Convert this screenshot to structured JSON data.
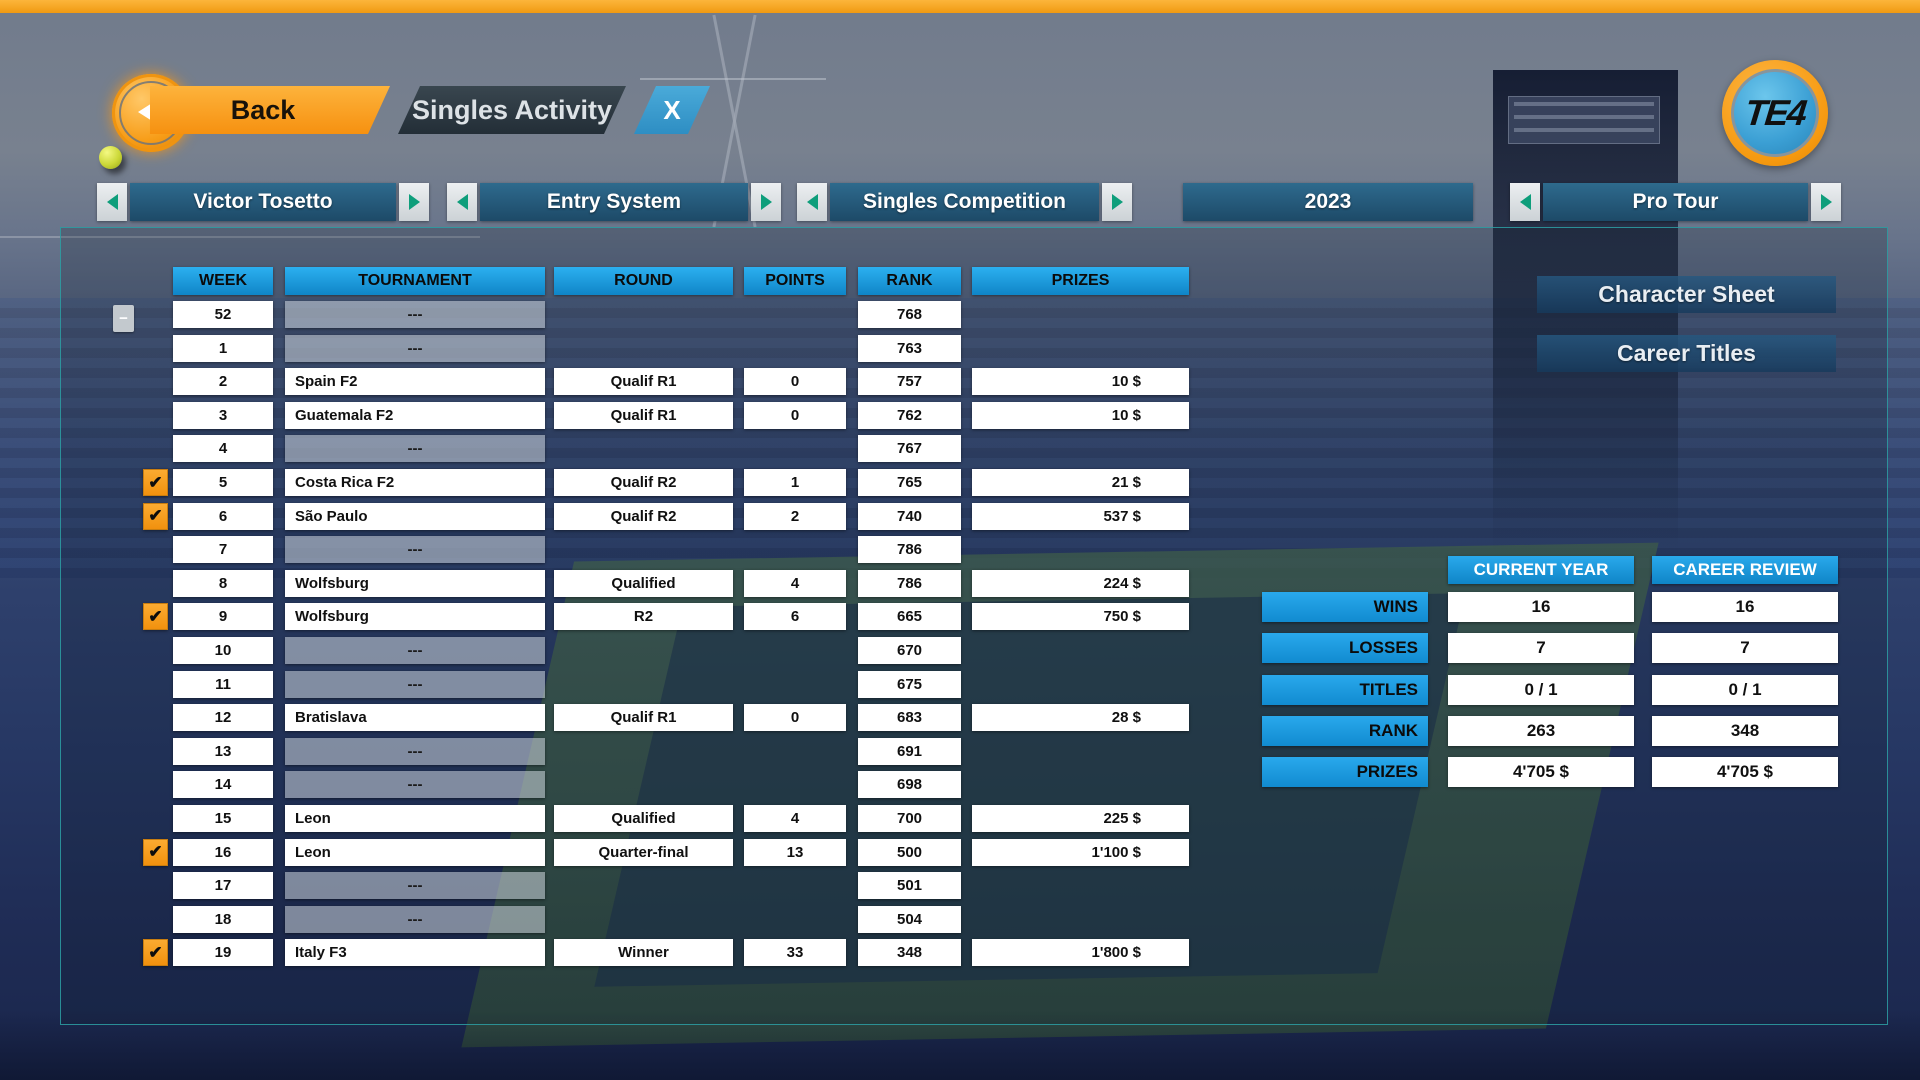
{
  "title_bar": {
    "back_label": "Back",
    "screen_title": "Singles Activity",
    "close_label": "X",
    "logo_text": "TE4"
  },
  "icons": {
    "check": "✔",
    "collapse_minus": "−"
  },
  "nav": {
    "selectors": [
      {
        "label": "Victor Tosetto"
      },
      {
        "label": "Entry System"
      },
      {
        "label": "Singles Competition"
      },
      {
        "label": "2023"
      },
      {
        "label": "Pro Tour"
      }
    ]
  },
  "table": {
    "headers": [
      "WEEK",
      "TOURNAMENT",
      "ROUND",
      "POINTS",
      "RANK",
      "PRIZES"
    ],
    "rows": [
      {
        "week": "52",
        "tournament": "---",
        "round": "",
        "points": "",
        "rank": "768",
        "prizes": "",
        "checked": false,
        "empty": true,
        "collapse": true
      },
      {
        "week": "1",
        "tournament": "---",
        "round": "",
        "points": "",
        "rank": "763",
        "prizes": "",
        "checked": false,
        "empty": true,
        "collapse": false
      },
      {
        "week": "2",
        "tournament": "Spain F2",
        "round": "Qualif R1",
        "points": "0",
        "rank": "757",
        "prizes": "10 $",
        "checked": false,
        "empty": false,
        "collapse": false
      },
      {
        "week": "3",
        "tournament": "Guatemala F2",
        "round": "Qualif R1",
        "points": "0",
        "rank": "762",
        "prizes": "10 $",
        "checked": false,
        "empty": false,
        "collapse": false
      },
      {
        "week": "4",
        "tournament": "---",
        "round": "",
        "points": "",
        "rank": "767",
        "prizes": "",
        "checked": false,
        "empty": true,
        "collapse": false
      },
      {
        "week": "5",
        "tournament": "Costa Rica F2",
        "round": "Qualif R2",
        "points": "1",
        "rank": "765",
        "prizes": "21 $",
        "checked": true,
        "empty": false,
        "collapse": false
      },
      {
        "week": "6",
        "tournament": "São Paulo",
        "round": "Qualif R2",
        "points": "2",
        "rank": "740",
        "prizes": "537 $",
        "checked": true,
        "empty": false,
        "collapse": false
      },
      {
        "week": "7",
        "tournament": "---",
        "round": "",
        "points": "",
        "rank": "786",
        "prizes": "",
        "checked": false,
        "empty": true,
        "collapse": false
      },
      {
        "week": "8",
        "tournament": "Wolfsburg",
        "round": "Qualified",
        "points": "4",
        "rank": "786",
        "prizes": "224 $",
        "checked": false,
        "empty": false,
        "collapse": false
      },
      {
        "week": "9",
        "tournament": "Wolfsburg",
        "round": "R2",
        "points": "6",
        "rank": "665",
        "prizes": "750 $",
        "checked": true,
        "empty": false,
        "collapse": false
      },
      {
        "week": "10",
        "tournament": "---",
        "round": "",
        "points": "",
        "rank": "670",
        "prizes": "",
        "checked": false,
        "empty": true,
        "collapse": false
      },
      {
        "week": "11",
        "tournament": "---",
        "round": "",
        "points": "",
        "rank": "675",
        "prizes": "",
        "checked": false,
        "empty": true,
        "collapse": false
      },
      {
        "week": "12",
        "tournament": "Bratislava",
        "round": "Qualif R1",
        "points": "0",
        "rank": "683",
        "prizes": "28 $",
        "checked": false,
        "empty": false,
        "collapse": false
      },
      {
        "week": "13",
        "tournament": "---",
        "round": "",
        "points": "",
        "rank": "691",
        "prizes": "",
        "checked": false,
        "empty": true,
        "collapse": false
      },
      {
        "week": "14",
        "tournament": "---",
        "round": "",
        "points": "",
        "rank": "698",
        "prizes": "",
        "checked": false,
        "empty": true,
        "collapse": false
      },
      {
        "week": "15",
        "tournament": "Leon",
        "round": "Qualified",
        "points": "4",
        "rank": "700",
        "prizes": "225 $",
        "checked": false,
        "empty": false,
        "collapse": false
      },
      {
        "week": "16",
        "tournament": "Leon",
        "round": "Quarter-final",
        "points": "13",
        "rank": "500",
        "prizes": "1'100 $",
        "checked": true,
        "empty": false,
        "collapse": false
      },
      {
        "week": "17",
        "tournament": "---",
        "round": "",
        "points": "",
        "rank": "501",
        "prizes": "",
        "checked": false,
        "empty": true,
        "collapse": false
      },
      {
        "week": "18",
        "tournament": "---",
        "round": "",
        "points": "",
        "rank": "504",
        "prizes": "",
        "checked": false,
        "empty": true,
        "collapse": false
      },
      {
        "week": "19",
        "tournament": "Italy F3",
        "round": "Winner",
        "points": "33",
        "rank": "348",
        "prizes": "1'800 $",
        "checked": true,
        "empty": false,
        "collapse": false
      }
    ]
  },
  "side": {
    "character_sheet": "Character Sheet",
    "career_titles": "Career Titles"
  },
  "stats": {
    "col_headers": [
      "CURRENT YEAR",
      "CAREER REVIEW"
    ],
    "rows": [
      {
        "label": "WINS",
        "current": "16",
        "career": "16"
      },
      {
        "label": "LOSSES",
        "current": "7",
        "career": "7"
      },
      {
        "label": "TITLES",
        "current": "0 / 1",
        "career": "0 / 1"
      },
      {
        "label": "RANK",
        "current": "263",
        "career": "348"
      },
      {
        "label": "PRIZES",
        "current": "4'705 $",
        "career": "4'705 $"
      }
    ]
  },
  "colors": {
    "accent_orange": "#f69110",
    "header_blue": "#1b9de4",
    "nav_bar_blue": "#255d7e",
    "panel_border_teal": "#2da0a5",
    "tab_slate": "#2c3841",
    "tab_close_blue": "#3a9ccf"
  }
}
